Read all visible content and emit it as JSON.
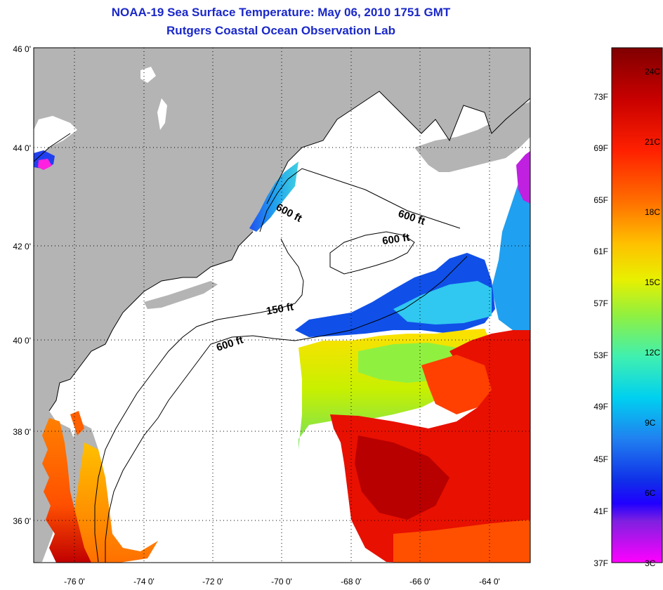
{
  "header": {
    "title": "NOAA-19 Sea Surface Temperature:  May 06, 2010 1751 GMT",
    "subtitle": "Rutgers Coastal Ocean Observation Lab"
  },
  "map": {
    "lat_ticks": [
      "46 0'",
      "44 0'",
      "42 0'",
      "40 0'",
      "38 0'",
      "36 0'"
    ],
    "lon_ticks": [
      "-76 0'",
      "-74 0'",
      "-72 0'",
      "-70 0'",
      "-68 0'",
      "-66 0'",
      "-64 0'"
    ],
    "depth_labels": [
      "600 ft",
      "600 ft",
      "600 ft",
      "150 ft",
      "600 ft"
    ],
    "colors": {
      "land": "#b4b4b4",
      "water_no_data": "#ffffff",
      "coastline": "#000000",
      "grid": "#000000"
    }
  },
  "color_scale": {
    "fahrenheit": [
      "73F",
      "69F",
      "65F",
      "61F",
      "57F",
      "53F",
      "49F",
      "45F",
      "41F",
      "37F"
    ],
    "celsius": [
      "24C",
      "21C",
      "18C",
      "15C",
      "12C",
      "9C",
      "6C",
      "3C"
    ],
    "gradient": [
      "#800000",
      "#c80000",
      "#ff2000",
      "#ff7000",
      "#ffc000",
      "#e8f000",
      "#90f040",
      "#40f0b0",
      "#00d0f0",
      "#2080f0",
      "#1030e8",
      "#2000ff",
      "#8020e0",
      "#ff00ff"
    ]
  }
}
